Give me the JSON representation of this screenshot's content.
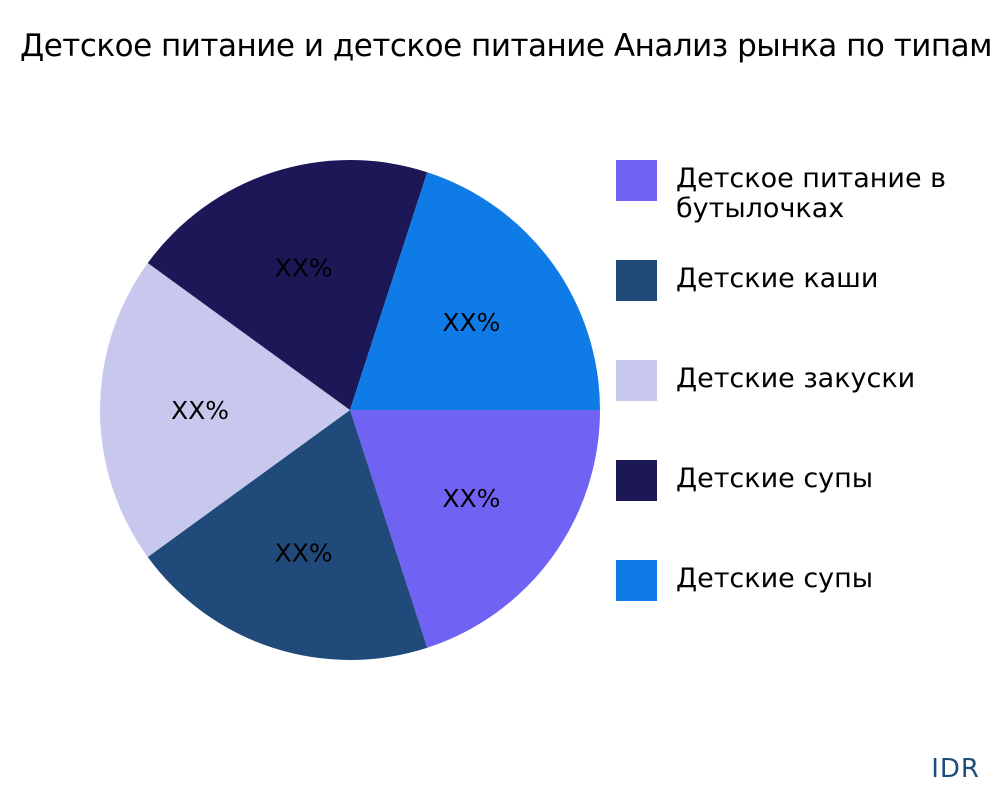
{
  "title": "Детское питание и детское питание Анализ рынка по типам",
  "brand": "IDR",
  "chart_data": {
    "type": "pie",
    "title": "Детское питание и детское питание Анализ рынка по типам",
    "categories": [
      "Детское питание в бутылочках",
      "Детские каши",
      "Детские закуски",
      "Детские супы",
      "Детские супы"
    ],
    "values": [
      20,
      20,
      20,
      20,
      20
    ],
    "labels": [
      "XX%",
      "XX%",
      "XX%",
      "XX%",
      "XX%"
    ],
    "colors": [
      "#7062f2",
      "#1f4a7a",
      "#c8c8ee",
      "#1c1757",
      "#0f7be6"
    ],
    "legend_position": "right"
  },
  "legend": [
    {
      "label": "Детское питание в бутылочках",
      "color": "#7062f2"
    },
    {
      "label": "Детские каши",
      "color": "#1f4a7a"
    },
    {
      "label": "Детские закуски",
      "color": "#c8c8ee"
    },
    {
      "label": "Детские супы",
      "color": "#1c1757"
    },
    {
      "label": "Детские супы",
      "color": "#0f7be6"
    }
  ]
}
